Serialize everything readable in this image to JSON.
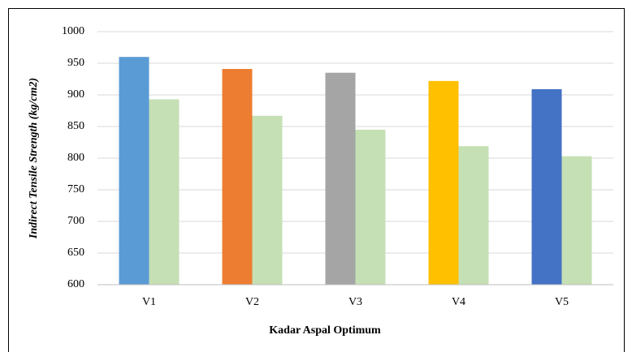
{
  "chart_data": {
    "type": "bar",
    "categories": [
      "V1",
      "V2",
      "V3",
      "V4",
      "V5"
    ],
    "series": [
      {
        "colors": [
          "#5b9bd5",
          "#ed7d31",
          "#a5a5a5",
          "#ffc000",
          "#4472c4"
        ],
        "values": [
          960,
          941,
          935,
          922,
          909
        ]
      },
      {
        "colors": [
          "#c5e0b4",
          "#c5e0b4",
          "#c5e0b4",
          "#c5e0b4",
          "#c5e0b4"
        ],
        "values": [
          893,
          867,
          845,
          819,
          803
        ]
      }
    ],
    "xlabel": "Kadar Aspal Optimum",
    "ylabel": "Indirect Tensile Strength (kg/cm2)",
    "ylim": [
      600,
      1000
    ],
    "yticks": [
      600,
      650,
      700,
      750,
      800,
      850,
      900,
      950,
      1000
    ],
    "grid": true
  }
}
